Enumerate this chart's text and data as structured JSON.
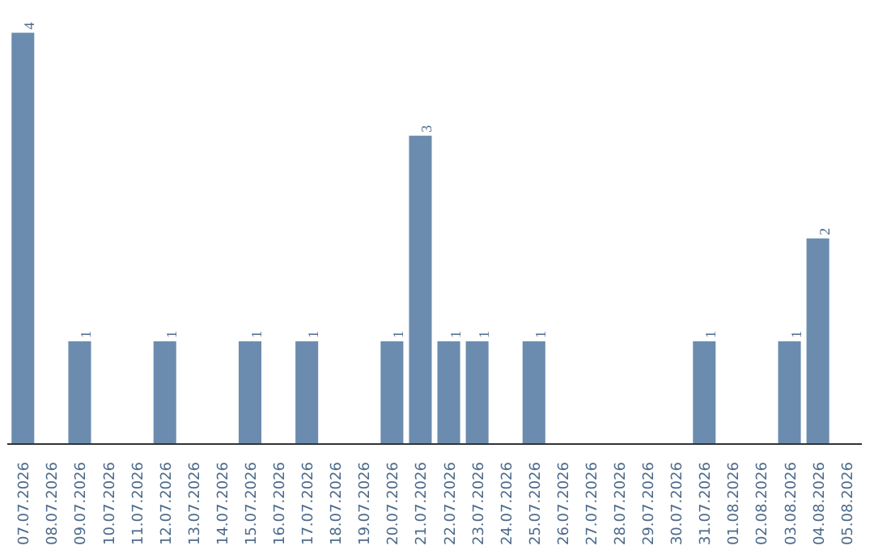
{
  "chart_data": {
    "type": "bar",
    "categories": [
      "07.07.2026",
      "08.07.2026",
      "09.07.2026",
      "10.07.2026",
      "11.07.2026",
      "12.07.2026",
      "13.07.2026",
      "14.07.2026",
      "15.07.2026",
      "16.07.2026",
      "17.07.2026",
      "18.07.2026",
      "19.07.2026",
      "20.07.2026",
      "21.07.2026",
      "22.07.2026",
      "23.07.2026",
      "24.07.2026",
      "25.07.2026",
      "26.07.2026",
      "27.07.2026",
      "28.07.2026",
      "29.07.2026",
      "30.07.2026",
      "31.07.2026",
      "01.08.2026",
      "02.08.2026",
      "03.08.2026",
      "04.08.2026",
      "05.08.2026"
    ],
    "values": [
      4,
      0,
      1,
      0,
      0,
      1,
      0,
      0,
      1,
      0,
      1,
      0,
      0,
      1,
      3,
      1,
      1,
      0,
      1,
      0,
      0,
      0,
      0,
      0,
      1,
      0,
      0,
      1,
      2,
      0
    ],
    "value_labels": [
      "4",
      null,
      "1",
      null,
      null,
      "1",
      null,
      null,
      "1",
      null,
      "1",
      null,
      null,
      "1",
      "3",
      "1",
      "1",
      null,
      "1",
      null,
      null,
      null,
      null,
      null,
      "1",
      null,
      null,
      "1",
      "2",
      null
    ],
    "color": "#6b8cae",
    "grid": false
  }
}
